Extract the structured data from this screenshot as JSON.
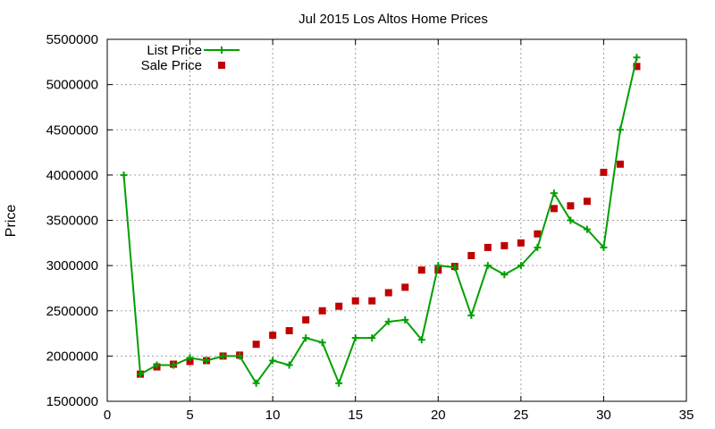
{
  "chart_data": {
    "type": "line",
    "title": "Jul 2015 Los Altos Home Prices",
    "xlabel": "",
    "ylabel": "Price",
    "xlim": [
      0,
      35
    ],
    "ylim": [
      1500000,
      5500000
    ],
    "xticks": [
      0,
      5,
      10,
      15,
      20,
      25,
      30,
      35
    ],
    "yticks": [
      1500000,
      2000000,
      2500000,
      3000000,
      3500000,
      4000000,
      4500000,
      5000000,
      5500000
    ],
    "grid": true,
    "legend_position": "top-left",
    "series": [
      {
        "name": "List Price",
        "style": "line+cross",
        "color": "#00a000",
        "x": [
          1,
          2,
          3,
          4,
          5,
          6,
          7,
          8,
          9,
          10,
          11,
          12,
          13,
          14,
          15,
          16,
          17,
          18,
          19,
          20,
          21,
          22,
          23,
          24,
          25,
          26,
          27,
          28,
          29,
          30,
          31,
          32
        ],
        "values": [
          4000000,
          1800000,
          1900000,
          1900000,
          1980000,
          1950000,
          2000000,
          2000000,
          1700000,
          1950000,
          1900000,
          2200000,
          2150000,
          1700000,
          2200000,
          2200000,
          2380000,
          2400000,
          2180000,
          3000000,
          2980000,
          2450000,
          3000000,
          2900000,
          3000000,
          3200000,
          3800000,
          3500000,
          3400000,
          3200000,
          4500000,
          5300000
        ]
      },
      {
        "name": "Sale Price",
        "style": "square",
        "color": "#c00000",
        "x": [
          2,
          3,
          4,
          5,
          6,
          7,
          8,
          9,
          10,
          11,
          12,
          13,
          14,
          15,
          16,
          17,
          18,
          19,
          20,
          21,
          22,
          23,
          24,
          25,
          26,
          27,
          28,
          29,
          30,
          31,
          32
        ],
        "values": [
          1800000,
          1880000,
          1910000,
          1940000,
          1950000,
          2000000,
          2010000,
          2130000,
          2230000,
          2280000,
          2400000,
          2500000,
          2550000,
          2610000,
          2610000,
          2700000,
          2760000,
          2950000,
          2950000,
          2990000,
          3110000,
          3200000,
          3220000,
          3250000,
          3350000,
          3630000,
          3660000,
          3710000,
          4030000,
          4120000,
          5200000
        ]
      }
    ]
  }
}
